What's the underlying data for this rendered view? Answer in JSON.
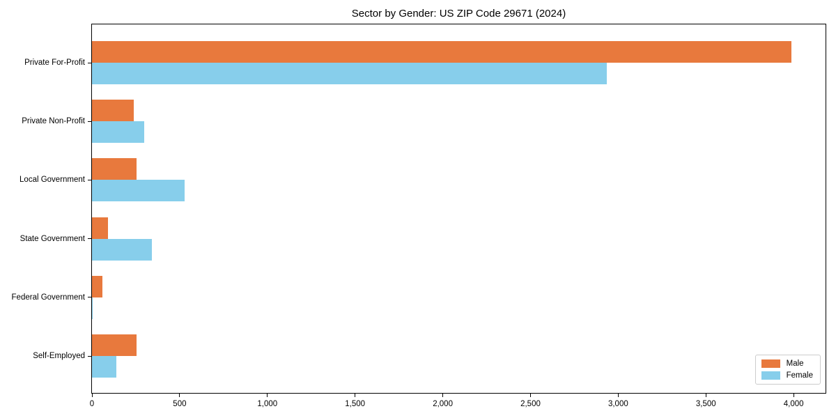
{
  "chart_data": {
    "type": "bar",
    "orientation": "horizontal",
    "title": "Sector by Gender: US ZIP Code 29671 (2024)",
    "categories": [
      "Private For-Profit",
      "Private Non-Profit",
      "Local Government",
      "State Government",
      "Federal Government",
      "Self-Employed"
    ],
    "series": [
      {
        "name": "Male",
        "color": "#e8793d",
        "values": [
          3988,
          240,
          253,
          91,
          60,
          256
        ]
      },
      {
        "name": "Female",
        "color": "#87ceeb",
        "values": [
          2935,
          298,
          530,
          341,
          4,
          139
        ]
      }
    ],
    "xlabel": "",
    "ylabel": "",
    "xlim": [
      0,
      4190
    ],
    "xticks": [
      0,
      500,
      1000,
      1500,
      2000,
      2500,
      3000,
      3500,
      4000
    ],
    "xtick_labels": [
      "0",
      "500",
      "1,000",
      "1,500",
      "2,000",
      "2,500",
      "3,000",
      "3,500",
      "4,000"
    ],
    "grid": false,
    "legend_position": "lower right"
  }
}
